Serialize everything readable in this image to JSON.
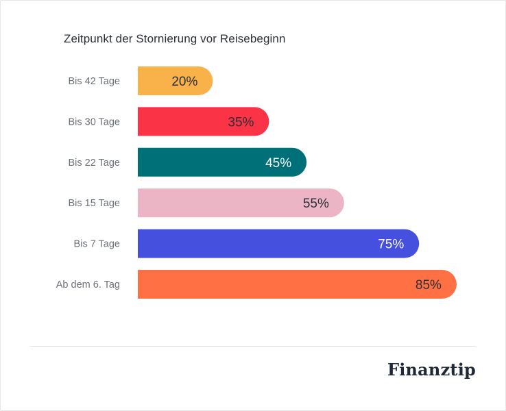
{
  "brand": {
    "name": "Finanztip"
  },
  "chart_data": {
    "type": "bar",
    "orientation": "horizontal",
    "title": "Zeitpunkt der Stornierung vor Reisebeginn",
    "xlabel": "",
    "ylabel": "",
    "xlim": [
      0,
      100
    ],
    "grid": false,
    "categories": [
      "Bis 42 Tage",
      "Bis 30 Tage",
      "Bis 22 Tage",
      "Bis 15 Tage",
      "Bis 7 Tage",
      "Ab dem 6. Tag"
    ],
    "values": [
      20,
      35,
      45,
      55,
      75,
      85
    ],
    "value_labels": [
      "20%",
      "35%",
      "45%",
      "55%",
      "75%",
      "85%"
    ],
    "colors": [
      "#F9B24A",
      "#FB3346",
      "#007078",
      "#EBB5C6",
      "#4550DE",
      "#FF7044"
    ],
    "label_colors": [
      "#2b2f36",
      "#2b2f36",
      "#ffffff",
      "#2b2f36",
      "#ffffff",
      "#2b2f36"
    ]
  }
}
